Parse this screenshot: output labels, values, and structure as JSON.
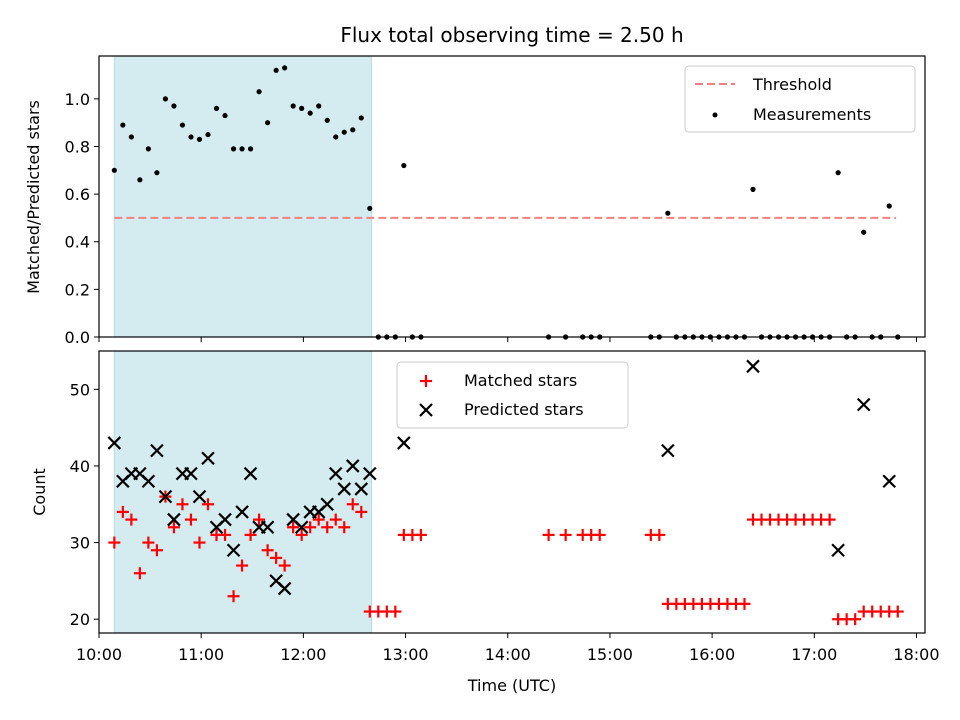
{
  "chart_data": [
    {
      "type": "scatter",
      "title": "Flux total observing time = 2.50 h",
      "xlabel": "",
      "ylabel": "Matched/Predicted stars",
      "xlim": [
        "10:00",
        "18:05"
      ],
      "ylim": [
        0,
        1.18
      ],
      "yticks": [
        "0.0",
        "0.2",
        "0.4",
        "0.6",
        "0.8",
        "1.0"
      ],
      "shaded_span": [
        "10:09",
        "12:40"
      ],
      "shade_color": "#d4ebf0",
      "legend_position": "upper right",
      "threshold": {
        "name": "Threshold",
        "y": 0.5,
        "x_start": "10:09",
        "x_end": "17:48",
        "color": "#f28080"
      },
      "measurements": {
        "name": "Measurements",
        "color": "#000000",
        "points": [
          [
            "10:09",
            0.7
          ],
          [
            "10:14",
            0.89
          ],
          [
            "10:19",
            0.84
          ],
          [
            "10:24",
            0.66
          ],
          [
            "10:29",
            0.79
          ],
          [
            "10:34",
            0.69
          ],
          [
            "10:39",
            1.0
          ],
          [
            "10:44",
            0.97
          ],
          [
            "10:49",
            0.89
          ],
          [
            "10:54",
            0.84
          ],
          [
            "10:59",
            0.83
          ],
          [
            "11:04",
            0.85
          ],
          [
            "11:09",
            0.96
          ],
          [
            "11:14",
            0.93
          ],
          [
            "11:19",
            0.79
          ],
          [
            "11:24",
            0.79
          ],
          [
            "11:29",
            0.79
          ],
          [
            "11:34",
            1.03
          ],
          [
            "11:39",
            0.9
          ],
          [
            "11:44",
            1.12
          ],
          [
            "11:49",
            1.13
          ],
          [
            "11:54",
            0.97
          ],
          [
            "11:59",
            0.96
          ],
          [
            "12:04",
            0.94
          ],
          [
            "12:09",
            0.97
          ],
          [
            "12:14",
            0.91
          ],
          [
            "12:19",
            0.84
          ],
          [
            "12:24",
            0.86
          ],
          [
            "12:29",
            0.87
          ],
          [
            "12:34",
            0.92
          ],
          [
            "12:39",
            0.54
          ],
          [
            "12:44",
            0.0
          ],
          [
            "12:49",
            0.0
          ],
          [
            "12:54",
            0.0
          ],
          [
            "12:59",
            0.72
          ],
          [
            "13:04",
            0.0
          ],
          [
            "13:09",
            0.0
          ],
          [
            "14:24",
            0.0
          ],
          [
            "14:34",
            0.0
          ],
          [
            "14:44",
            0.0
          ],
          [
            "14:49",
            0.0
          ],
          [
            "14:54",
            0.0
          ],
          [
            "15:24",
            0.0
          ],
          [
            "15:29",
            0.0
          ],
          [
            "15:34",
            0.52
          ],
          [
            "15:39",
            0.0
          ],
          [
            "15:44",
            0.0
          ],
          [
            "15:49",
            0.0
          ],
          [
            "15:54",
            0.0
          ],
          [
            "15:59",
            0.0
          ],
          [
            "16:04",
            0.0
          ],
          [
            "16:09",
            0.0
          ],
          [
            "16:14",
            0.0
          ],
          [
            "16:19",
            0.0
          ],
          [
            "16:24",
            0.62
          ],
          [
            "16:29",
            0.0
          ],
          [
            "16:34",
            0.0
          ],
          [
            "16:39",
            0.0
          ],
          [
            "16:44",
            0.0
          ],
          [
            "16:49",
            0.0
          ],
          [
            "16:54",
            0.0
          ],
          [
            "16:59",
            0.0
          ],
          [
            "17:04",
            0.0
          ],
          [
            "17:09",
            0.0
          ],
          [
            "17:14",
            0.69
          ],
          [
            "17:19",
            0.0
          ],
          [
            "17:24",
            0.0
          ],
          [
            "17:29",
            0.44
          ],
          [
            "17:34",
            0.0
          ],
          [
            "17:39",
            0.0
          ],
          [
            "17:44",
            0.55
          ],
          [
            "17:49",
            0.0
          ]
        ]
      }
    },
    {
      "type": "scatter",
      "title": "",
      "xlabel": "Time (UTC)",
      "ylabel": "Count",
      "xlim": [
        "10:00",
        "18:05"
      ],
      "xticks": [
        "10:00",
        "11:00",
        "12:00",
        "13:00",
        "14:00",
        "15:00",
        "16:00",
        "17:00",
        "18:00"
      ],
      "ylim": [
        18.2,
        55
      ],
      "yticks": [
        "20",
        "30",
        "40",
        "50"
      ],
      "shaded_span": [
        "10:09",
        "12:40"
      ],
      "shade_color": "#d4ebf0",
      "legend_position": "upper center",
      "series": [
        {
          "name": "Matched stars",
          "marker": "plus",
          "color": "#ff0000",
          "points": [
            [
              "10:09",
              30
            ],
            [
              "10:14",
              34
            ],
            [
              "10:19",
              33
            ],
            [
              "10:24",
              26
            ],
            [
              "10:29",
              30
            ],
            [
              "10:34",
              29
            ],
            [
              "10:39",
              36
            ],
            [
              "10:44",
              32
            ],
            [
              "10:49",
              35
            ],
            [
              "10:54",
              33
            ],
            [
              "10:59",
              30
            ],
            [
              "11:04",
              35
            ],
            [
              "11:09",
              31
            ],
            [
              "11:14",
              31
            ],
            [
              "11:19",
              23
            ],
            [
              "11:24",
              27
            ],
            [
              "11:29",
              31
            ],
            [
              "11:34",
              33
            ],
            [
              "11:39",
              29
            ],
            [
              "11:44",
              28
            ],
            [
              "11:49",
              27
            ],
            [
              "11:54",
              32
            ],
            [
              "11:59",
              31
            ],
            [
              "12:04",
              32
            ],
            [
              "12:09",
              33
            ],
            [
              "12:14",
              32
            ],
            [
              "12:19",
              33
            ],
            [
              "12:24",
              32
            ],
            [
              "12:29",
              35
            ],
            [
              "12:34",
              34
            ],
            [
              "12:39",
              21
            ],
            [
              "12:44",
              21
            ],
            [
              "12:49",
              21
            ],
            [
              "12:54",
              21
            ],
            [
              "12:59",
              31
            ],
            [
              "13:04",
              31
            ],
            [
              "13:09",
              31
            ],
            [
              "14:24",
              31
            ],
            [
              "14:34",
              31
            ],
            [
              "14:44",
              31
            ],
            [
              "14:49",
              31
            ],
            [
              "14:54",
              31
            ],
            [
              "15:24",
              31
            ],
            [
              "15:29",
              31
            ],
            [
              "15:34",
              22
            ],
            [
              "15:39",
              22
            ],
            [
              "15:44",
              22
            ],
            [
              "15:49",
              22
            ],
            [
              "15:54",
              22
            ],
            [
              "15:59",
              22
            ],
            [
              "16:04",
              22
            ],
            [
              "16:09",
              22
            ],
            [
              "16:14",
              22
            ],
            [
              "16:19",
              22
            ],
            [
              "16:24",
              33
            ],
            [
              "16:29",
              33
            ],
            [
              "16:34",
              33
            ],
            [
              "16:39",
              33
            ],
            [
              "16:44",
              33
            ],
            [
              "16:49",
              33
            ],
            [
              "16:54",
              33
            ],
            [
              "16:59",
              33
            ],
            [
              "17:04",
              33
            ],
            [
              "17:09",
              33
            ],
            [
              "17:14",
              20
            ],
            [
              "17:19",
              20
            ],
            [
              "17:24",
              20
            ],
            [
              "17:29",
              21
            ],
            [
              "17:34",
              21
            ],
            [
              "17:39",
              21
            ],
            [
              "17:44",
              21
            ],
            [
              "17:49",
              21
            ]
          ]
        },
        {
          "name": "Predicted stars",
          "marker": "x",
          "color": "#000000",
          "points": [
            [
              "10:09",
              43
            ],
            [
              "10:14",
              38
            ],
            [
              "10:19",
              39
            ],
            [
              "10:24",
              39
            ],
            [
              "10:29",
              38
            ],
            [
              "10:34",
              42
            ],
            [
              "10:39",
              36
            ],
            [
              "10:44",
              33
            ],
            [
              "10:49",
              39
            ],
            [
              "10:54",
              39
            ],
            [
              "10:59",
              36
            ],
            [
              "11:04",
              41
            ],
            [
              "11:09",
              32
            ],
            [
              "11:14",
              33
            ],
            [
              "11:19",
              29
            ],
            [
              "11:24",
              34
            ],
            [
              "11:29",
              39
            ],
            [
              "11:34",
              32
            ],
            [
              "11:39",
              32
            ],
            [
              "11:44",
              25
            ],
            [
              "11:49",
              24
            ],
            [
              "11:54",
              33
            ],
            [
              "11:59",
              32
            ],
            [
              "12:04",
              34
            ],
            [
              "12:09",
              34
            ],
            [
              "12:14",
              35
            ],
            [
              "12:19",
              39
            ],
            [
              "12:24",
              37
            ],
            [
              "12:29",
              40
            ],
            [
              "12:34",
              37
            ],
            [
              "12:39",
              39
            ],
            [
              "12:59",
              43
            ],
            [
              "15:34",
              42
            ],
            [
              "16:24",
              53
            ],
            [
              "17:14",
              29
            ],
            [
              "17:29",
              48
            ],
            [
              "17:44",
              38
            ]
          ]
        }
      ]
    }
  ]
}
